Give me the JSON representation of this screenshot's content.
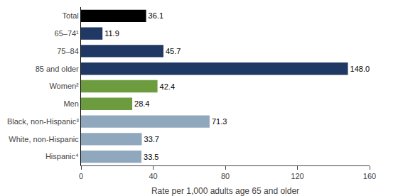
{
  "chart_data": {
    "type": "bar",
    "orientation": "horizontal",
    "categories": [
      "Total",
      "65–74¹",
      "75–84",
      "85 and older",
      "Women²",
      "Men",
      "Black, non-Hispanic³",
      "White, non-Hispanic",
      "Hispanic⁴"
    ],
    "values": [
      36.1,
      11.9,
      45.7,
      148.0,
      42.4,
      28.4,
      71.3,
      33.7,
      33.5
    ],
    "value_labels": [
      "36.1",
      "11.9",
      "45.7",
      "148.0",
      "42.4",
      "28.4",
      "71.3",
      "33.7",
      "33.5"
    ],
    "colors": [
      "#000000",
      "#1f3864",
      "#1f3864",
      "#1f3864",
      "#6d9c3e",
      "#6d9c3e",
      "#8fa8be",
      "#8fa8be",
      "#8fa8be"
    ],
    "xlabel": "Rate per 1,000 adults age 65 and older",
    "xlim": [
      0,
      160
    ],
    "xticks": [
      0,
      40,
      80,
      120,
      160
    ],
    "data_labels": true,
    "grid": false
  }
}
